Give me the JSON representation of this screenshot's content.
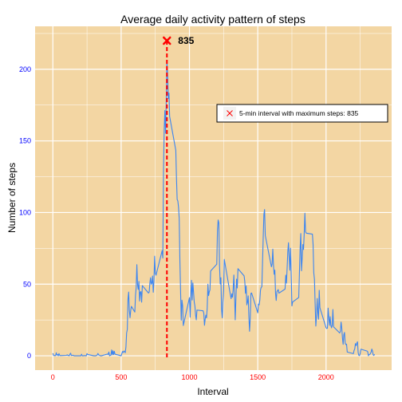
{
  "chart_data": {
    "type": "line",
    "title": "Average daily activity pattern of steps",
    "xlabel": "Interval",
    "ylabel": "Number of steps",
    "xlim": [
      -130,
      2480
    ],
    "ylim": [
      -10,
      230
    ],
    "x_ticks": [
      0,
      500,
      1000,
      1500,
      2000
    ],
    "x_tick_labels": [
      "0",
      "500",
      "1000",
      "1500",
      "2000"
    ],
    "y_ticks": [
      0,
      50,
      100,
      150,
      200
    ],
    "y_tick_labels": [
      "0",
      "50",
      "100",
      "150",
      "200"
    ],
    "x_minor_ticks": [
      250,
      750,
      1250,
      1750,
      2250
    ],
    "y_minor_ticks": [
      25,
      75,
      125,
      175,
      225
    ],
    "grid": true,
    "series": [
      {
        "color": "#3c85f0",
        "points": [
          [
            0,
            1.7
          ],
          [
            5,
            0.3
          ],
          [
            10,
            0.1
          ],
          [
            15,
            0.2
          ],
          [
            20,
            0.1
          ],
          [
            25,
            2.1
          ],
          [
            30,
            0.5
          ],
          [
            35,
            0.9
          ],
          [
            40,
            0.0
          ],
          [
            45,
            1.5
          ],
          [
            50,
            0.3
          ],
          [
            55,
            0.1
          ],
          [
            100,
            0.3
          ],
          [
            105,
            0.7
          ],
          [
            110,
            0.2
          ],
          [
            115,
            0.3
          ],
          [
            120,
            0.0
          ],
          [
            125,
            1.1
          ],
          [
            130,
            1.8
          ],
          [
            135,
            0.2
          ],
          [
            140,
            0.2
          ],
          [
            145,
            0.4
          ],
          [
            150,
            0.3
          ],
          [
            155,
            0.0
          ],
          [
            200,
            0.0
          ],
          [
            205,
            0.0
          ],
          [
            210,
            1.1
          ],
          [
            215,
            0.0
          ],
          [
            220,
            0.0
          ],
          [
            225,
            0.1
          ],
          [
            230,
            0.0
          ],
          [
            235,
            0.2
          ],
          [
            240,
            0.0
          ],
          [
            245,
            0.0
          ],
          [
            250,
            1.5
          ],
          [
            255,
            0.9
          ],
          [
            300,
            0.0
          ],
          [
            305,
            0.0
          ],
          [
            310,
            0.0
          ],
          [
            315,
            0.0
          ],
          [
            320,
            0.2
          ],
          [
            325,
            0.6
          ],
          [
            330,
            1.6
          ],
          [
            335,
            0.6
          ],
          [
            340,
            0.5
          ],
          [
            345,
            0.1
          ],
          [
            350,
            0.0
          ],
          [
            355,
            0.0
          ],
          [
            400,
            1.2
          ],
          [
            405,
            0.9
          ],
          [
            410,
            2.6
          ],
          [
            415,
            0.0
          ],
          [
            420,
            0.3
          ],
          [
            425,
            0.4
          ],
          [
            430,
            4.1
          ],
          [
            435,
            0.7
          ],
          [
            440,
            3.5
          ],
          [
            445,
            0.8
          ],
          [
            450,
            3.1
          ],
          [
            455,
            1.1
          ],
          [
            500,
            0.0
          ],
          [
            505,
            1.6
          ],
          [
            510,
            3.0
          ],
          [
            515,
            2.2
          ],
          [
            520,
            3.3
          ],
          [
            525,
            3.0
          ],
          [
            530,
            2.1
          ],
          [
            535,
            6.1
          ],
          [
            540,
            16.0
          ],
          [
            545,
            18.3
          ],
          [
            550,
            39.5
          ],
          [
            555,
            44.5
          ],
          [
            560,
            31.5
          ],
          [
            565,
            26.6
          ],
          [
            570,
            31.7
          ],
          [
            575,
            34.5
          ],
          [
            600,
            30.5
          ],
          [
            605,
            42.3
          ],
          [
            610,
            47.7
          ],
          [
            615,
            63.6
          ],
          [
            620,
            49.7
          ],
          [
            625,
            46.3
          ],
          [
            630,
            51.9
          ],
          [
            635,
            38.2
          ],
          [
            640,
            44.4
          ],
          [
            645,
            44.8
          ],
          [
            650,
            37.4
          ],
          [
            655,
            49.0
          ],
          [
            700,
            43.8
          ],
          [
            705,
            44.4
          ],
          [
            710,
            50.5
          ],
          [
            715,
            54.5
          ],
          [
            720,
            49.9
          ],
          [
            725,
            50.9
          ],
          [
            730,
            55.7
          ],
          [
            735,
            44.3
          ],
          [
            740,
            52.3
          ],
          [
            745,
            69.5
          ],
          [
            750,
            57.8
          ],
          [
            755,
            56.2
          ],
          [
            800,
            73.4
          ],
          [
            805,
            68.2
          ],
          [
            810,
            129.4
          ],
          [
            815,
            157.5
          ],
          [
            820,
            171.2
          ],
          [
            825,
            155.4
          ],
          [
            830,
            177.3
          ],
          [
            835,
            206.2
          ],
          [
            840,
            195.9
          ],
          [
            845,
            179.6
          ],
          [
            850,
            183.4
          ],
          [
            855,
            167.0
          ],
          [
            900,
            143.5
          ],
          [
            905,
            124.0
          ],
          [
            910,
            109.1
          ],
          [
            915,
            108.1
          ],
          [
            920,
            103.7
          ],
          [
            925,
            95.9
          ],
          [
            930,
            66.2
          ],
          [
            935,
            45.2
          ],
          [
            940,
            24.8
          ],
          [
            945,
            38.8
          ],
          [
            950,
            35.0
          ],
          [
            955,
            21.1
          ],
          [
            1000,
            40.6
          ],
          [
            1005,
            26.9
          ],
          [
            1010,
            42.4
          ],
          [
            1015,
            52.7
          ],
          [
            1020,
            38.9
          ],
          [
            1025,
            50.8
          ],
          [
            1030,
            44.3
          ],
          [
            1035,
            37.4
          ],
          [
            1040,
            34.7
          ],
          [
            1045,
            28.3
          ],
          [
            1050,
            25.1
          ],
          [
            1055,
            31.9
          ],
          [
            1100,
            31.4
          ],
          [
            1105,
            29.7
          ],
          [
            1110,
            21.3
          ],
          [
            1115,
            25.5
          ],
          [
            1120,
            28.4
          ],
          [
            1125,
            26.5
          ],
          [
            1130,
            33.4
          ],
          [
            1135,
            50.0
          ],
          [
            1140,
            42.0
          ],
          [
            1145,
            44.6
          ],
          [
            1150,
            46.0
          ],
          [
            1155,
            59.2
          ],
          [
            1200,
            63.9
          ],
          [
            1205,
            87.7
          ],
          [
            1210,
            94.8
          ],
          [
            1215,
            92.8
          ],
          [
            1220,
            63.4
          ],
          [
            1225,
            50.2
          ],
          [
            1230,
            54.5
          ],
          [
            1235,
            32.4
          ],
          [
            1240,
            26.5
          ],
          [
            1245,
            37.7
          ],
          [
            1250,
            45.1
          ],
          [
            1255,
            67.3
          ],
          [
            1300,
            42.3
          ],
          [
            1305,
            39.9
          ],
          [
            1310,
            43.3
          ],
          [
            1315,
            40.9
          ],
          [
            1320,
            46.2
          ],
          [
            1325,
            56.4
          ],
          [
            1330,
            42.8
          ],
          [
            1335,
            25.1
          ],
          [
            1340,
            39.9
          ],
          [
            1345,
            53.5
          ],
          [
            1350,
            47.3
          ],
          [
            1355,
            60.8
          ],
          [
            1400,
            55.8
          ],
          [
            1405,
            51.9
          ],
          [
            1410,
            43.6
          ],
          [
            1415,
            48.7
          ],
          [
            1420,
            35.5
          ],
          [
            1425,
            37.5
          ],
          [
            1430,
            41.8
          ],
          [
            1435,
            27.5
          ],
          [
            1440,
            17.1
          ],
          [
            1445,
            26.1
          ],
          [
            1450,
            43.6
          ],
          [
            1455,
            43.8
          ],
          [
            1500,
            30.0
          ],
          [
            1505,
            36.1
          ],
          [
            1510,
            35.5
          ],
          [
            1515,
            38.8
          ],
          [
            1520,
            45.9
          ],
          [
            1525,
            47.8
          ],
          [
            1530,
            48.1
          ],
          [
            1535,
            65.3
          ],
          [
            1540,
            82.9
          ],
          [
            1545,
            98.7
          ],
          [
            1550,
            102.1
          ],
          [
            1555,
            84.0
          ],
          [
            1600,
            62.1
          ],
          [
            1605,
            64.1
          ],
          [
            1610,
            74.5
          ],
          [
            1615,
            63.2
          ],
          [
            1620,
            56.9
          ],
          [
            1625,
            59.8
          ],
          [
            1630,
            43.9
          ],
          [
            1635,
            38.6
          ],
          [
            1640,
            44.7
          ],
          [
            1645,
            45.5
          ],
          [
            1650,
            46.2
          ],
          [
            1655,
            43.7
          ],
          [
            1700,
            46.6
          ],
          [
            1705,
            56.3
          ],
          [
            1710,
            50.7
          ],
          [
            1715,
            61.2
          ],
          [
            1720,
            72.7
          ],
          [
            1725,
            78.9
          ],
          [
            1730,
            68.9
          ],
          [
            1735,
            59.7
          ],
          [
            1740,
            75.1
          ],
          [
            1745,
            56.5
          ],
          [
            1750,
            34.8
          ],
          [
            1755,
            37.5
          ],
          [
            1800,
            40.7
          ],
          [
            1805,
            58.0
          ],
          [
            1810,
            74.7
          ],
          [
            1815,
            85.3
          ],
          [
            1820,
            59.3
          ],
          [
            1825,
            67.8
          ],
          [
            1830,
            77.7
          ],
          [
            1835,
            74.2
          ],
          [
            1840,
            85.3
          ],
          [
            1845,
            99.5
          ],
          [
            1850,
            86.6
          ],
          [
            1855,
            85.6
          ],
          [
            1900,
            84.9
          ],
          [
            1905,
            77.8
          ],
          [
            1910,
            58.0
          ],
          [
            1915,
            53.4
          ],
          [
            1920,
            36.3
          ],
          [
            1925,
            20.7
          ],
          [
            1930,
            27.4
          ],
          [
            1935,
            40.0
          ],
          [
            1940,
            30.2
          ],
          [
            1945,
            25.5
          ],
          [
            1950,
            45.7
          ],
          [
            1955,
            33.5
          ],
          [
            2000,
            19.6
          ],
          [
            2005,
            19.0
          ],
          [
            2010,
            19.3
          ],
          [
            2015,
            33.3
          ],
          [
            2020,
            26.8
          ],
          [
            2025,
            21.2
          ],
          [
            2030,
            27.3
          ],
          [
            2035,
            21.3
          ],
          [
            2040,
            19.5
          ],
          [
            2045,
            21.3
          ],
          [
            2050,
            32.3
          ],
          [
            2055,
            20.2
          ],
          [
            2100,
            15.9
          ],
          [
            2105,
            17.2
          ],
          [
            2110,
            23.5
          ],
          [
            2115,
            19.2
          ],
          [
            2120,
            12.5
          ],
          [
            2125,
            8.0
          ],
          [
            2130,
            14.7
          ],
          [
            2135,
            16.3
          ],
          [
            2140,
            8.7
          ],
          [
            2145,
            7.8
          ],
          [
            2150,
            8.1
          ],
          [
            2155,
            2.6
          ],
          [
            2200,
            1.5
          ],
          [
            2205,
            3.7
          ],
          [
            2210,
            4.8
          ],
          [
            2215,
            8.5
          ],
          [
            2220,
            7.1
          ],
          [
            2225,
            8.7
          ],
          [
            2230,
            9.8
          ],
          [
            2235,
            2.2
          ],
          [
            2240,
            0.3
          ],
          [
            2245,
            0.1
          ],
          [
            2250,
            1.6
          ],
          [
            2255,
            4.6
          ],
          [
            2300,
            3.3
          ],
          [
            2305,
            2.8
          ],
          [
            2310,
            0.0
          ],
          [
            2315,
            0.8
          ],
          [
            2320,
            1.0
          ],
          [
            2325,
            1.6
          ],
          [
            2330,
            2.6
          ],
          [
            2335,
            4.7
          ],
          [
            2340,
            3.3
          ],
          [
            2345,
            0.6
          ],
          [
            2350,
            0.2
          ],
          [
            2355,
            1.1
          ]
        ]
      }
    ],
    "max_marker": {
      "x": 835,
      "y": 220,
      "label": "835",
      "color": "#ff0000"
    },
    "vline": {
      "x": 835,
      "color": "#ff0000"
    },
    "legend": {
      "label": "5-min interval with maximum steps:  835",
      "placement": "right"
    },
    "colors": {
      "panel": "#f3d6a3",
      "grid": "#ffffff",
      "line": "#3c85f0",
      "marker": "#ff0000",
      "x_tick_text": "#ff0000",
      "y_tick_text": "#0000ff"
    }
  }
}
